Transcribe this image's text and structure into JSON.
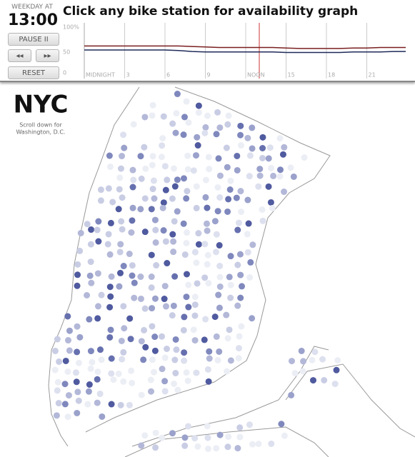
{
  "header": {
    "weekday_label": "WEEKDAY AT",
    "time": "13:00",
    "title": "Click any bike station for availability graph"
  },
  "controls": {
    "pause": "PAUSE II",
    "back": "◂◂",
    "forward": "▸▸",
    "reset": "RESET"
  },
  "chart_data": {
    "type": "line",
    "x": [
      0,
      1,
      2,
      3,
      4,
      5,
      6,
      7,
      8,
      9,
      10,
      11,
      12,
      13,
      14,
      15,
      16,
      17,
      18,
      19,
      20,
      21,
      22,
      23,
      24
    ],
    "series": [
      {
        "color": "#7a1f1f",
        "values": [
          58,
          58,
          58,
          58,
          58,
          58,
          58,
          58,
          57,
          56,
          55,
          55,
          55,
          55,
          55,
          54,
          53,
          53,
          53,
          53,
          54,
          54,
          55,
          55,
          55
        ]
      },
      {
        "color": "#1f2a5a",
        "values": [
          50,
          50,
          50,
          50,
          50,
          50,
          50,
          49,
          47,
          46,
          46,
          46,
          46,
          46,
          46,
          45,
          45,
          45,
          45,
          45,
          46,
          46,
          46,
          47,
          47
        ]
      }
    ],
    "xlim": [
      0,
      24
    ],
    "xticks": [
      {
        "value": 0,
        "label": "MIDNIGHT"
      },
      3,
      6,
      9,
      {
        "value": 12,
        "label": "NOON"
      },
      15,
      18,
      21
    ],
    "ylim": [
      0,
      100
    ],
    "yticks": [
      0,
      50,
      {
        "value": 100,
        "label": "100%"
      }
    ],
    "grid": true
  },
  "map": {
    "city": "NYC",
    "subtitle_lines": [
      "Scroll down for",
      "Washington, D.C."
    ]
  }
}
